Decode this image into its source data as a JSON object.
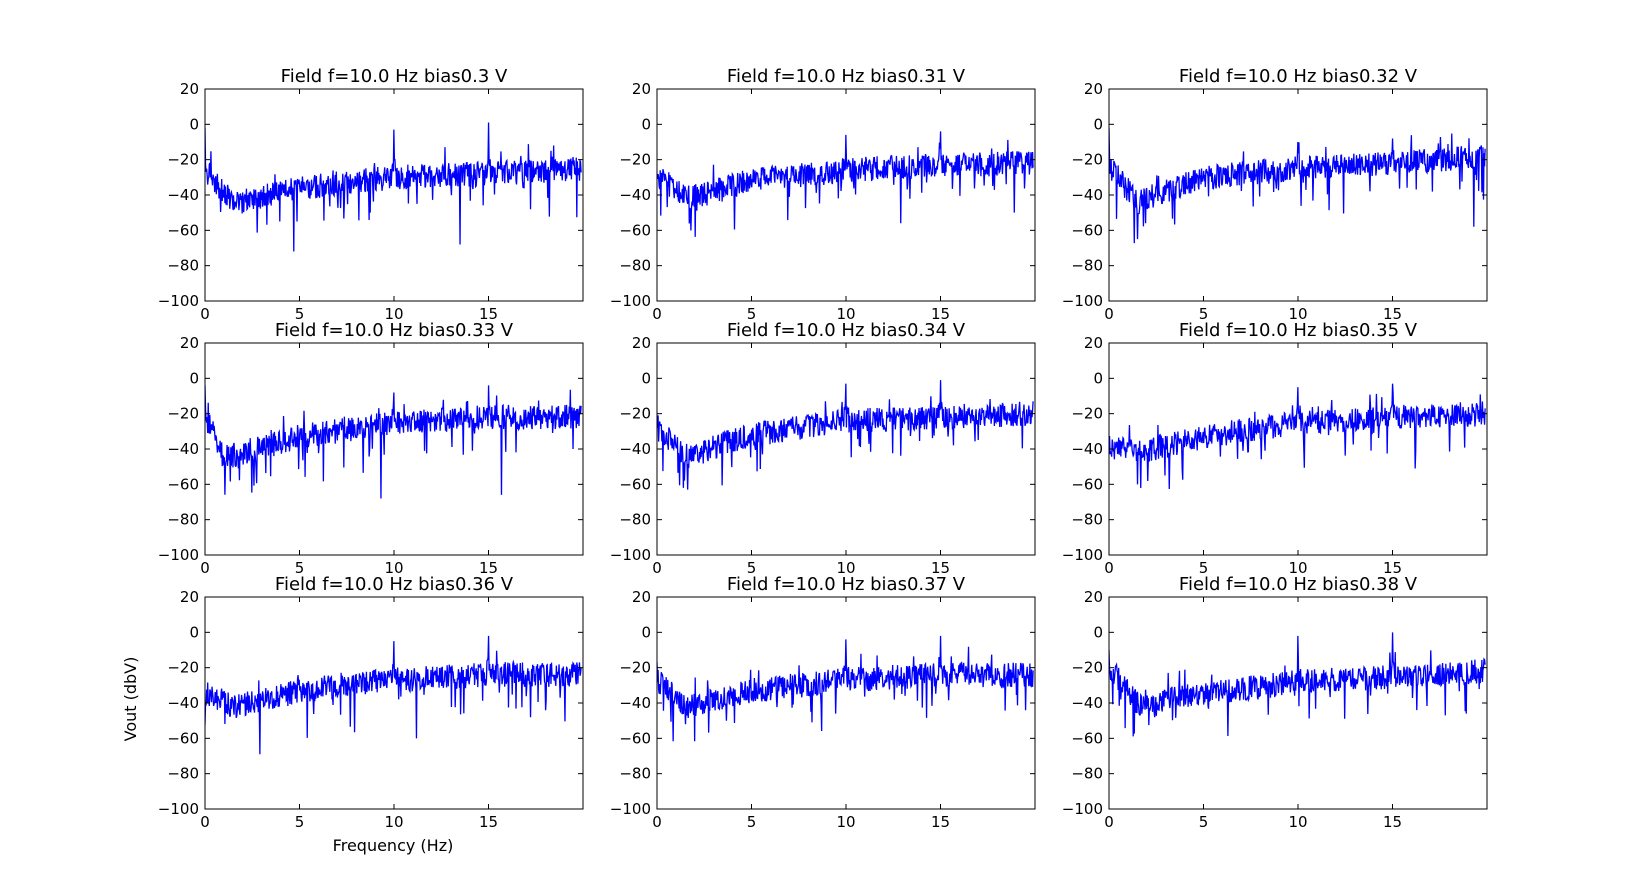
{
  "figure": {
    "ylabel": "Vout (dbV)",
    "xlabel": "Frequency (Hz)"
  },
  "chart_data": [
    {
      "type": "line",
      "title": "Field f=10.0 Hz bias0.3 V",
      "xlim": [
        0,
        20
      ],
      "ylim": [
        -100,
        20
      ],
      "xticks": [
        0,
        5,
        10,
        15
      ],
      "yticks": [
        20,
        0,
        -20,
        -40,
        -60,
        -80,
        -100
      ],
      "line_color": "#0000ff",
      "peaks": [
        {
          "x": 0.0,
          "y": -2
        },
        {
          "x": 4.7,
          "y": -72
        },
        {
          "x": 10.0,
          "y": -3
        },
        {
          "x": 13.5,
          "y": -68
        },
        {
          "x": 15.0,
          "y": 1
        }
      ],
      "noise_floor": [
        {
          "x": 0.2,
          "y": -28
        },
        {
          "x": 1.5,
          "y": -45
        },
        {
          "x": 5.0,
          "y": -36
        },
        {
          "x": 10.0,
          "y": -30
        },
        {
          "x": 15.0,
          "y": -28
        },
        {
          "x": 19.9,
          "y": -25
        }
      ]
    },
    {
      "type": "line",
      "title": "Field f=10.0 Hz bias0.31 V",
      "xlim": [
        0,
        20
      ],
      "ylim": [
        -100,
        20
      ],
      "xticks": [
        0,
        5,
        10,
        15
      ],
      "yticks": [
        20,
        0,
        -20,
        -40,
        -60,
        -80,
        -100
      ],
      "line_color": "#0000ff",
      "peaks": [
        {
          "x": 0.0,
          "y": -28
        },
        {
          "x": 10.0,
          "y": -6
        },
        {
          "x": 12.9,
          "y": -56
        },
        {
          "x": 15.0,
          "y": -4
        },
        {
          "x": 18.9,
          "y": -50
        }
      ],
      "noise_floor": [
        {
          "x": 0.2,
          "y": -30
        },
        {
          "x": 1.5,
          "y": -42
        },
        {
          "x": 5.0,
          "y": -32
        },
        {
          "x": 10.0,
          "y": -26
        },
        {
          "x": 15.0,
          "y": -23
        },
        {
          "x": 19.9,
          "y": -22
        }
      ]
    },
    {
      "type": "line",
      "title": "Field f=10.0 Hz bias0.32 V",
      "xlim": [
        0,
        20
      ],
      "ylim": [
        -100,
        20
      ],
      "xticks": [
        0,
        5,
        10,
        15
      ],
      "yticks": [
        20,
        0,
        -20,
        -40,
        -60,
        -80,
        -100
      ],
      "line_color": "#0000ff",
      "peaks": [
        {
          "x": 0.0,
          "y": -2
        },
        {
          "x": 1.5,
          "y": -65
        },
        {
          "x": 10.0,
          "y": -10
        },
        {
          "x": 15.0,
          "y": -8
        },
        {
          "x": 19.3,
          "y": -58
        }
      ],
      "noise_floor": [
        {
          "x": 0.2,
          "y": -26
        },
        {
          "x": 1.5,
          "y": -44
        },
        {
          "x": 5.0,
          "y": -30
        },
        {
          "x": 10.0,
          "y": -25
        },
        {
          "x": 15.0,
          "y": -22
        },
        {
          "x": 19.9,
          "y": -18
        }
      ]
    },
    {
      "type": "line",
      "title": "Field f=10.0 Hz bias0.33 V",
      "xlim": [
        0,
        20
      ],
      "ylim": [
        -100,
        20
      ],
      "xticks": [
        0,
        5,
        10,
        15
      ],
      "yticks": [
        20,
        0,
        -20,
        -40,
        -60,
        -80,
        -100
      ],
      "line_color": "#0000ff",
      "peaks": [
        {
          "x": 0.0,
          "y": -4
        },
        {
          "x": 9.3,
          "y": -68
        },
        {
          "x": 10.0,
          "y": -8
        },
        {
          "x": 15.0,
          "y": -4
        },
        {
          "x": 15.7,
          "y": -66
        }
      ],
      "noise_floor": [
        {
          "x": 0.2,
          "y": -25
        },
        {
          "x": 1.0,
          "y": -45
        },
        {
          "x": 5.0,
          "y": -33
        },
        {
          "x": 10.0,
          "y": -25
        },
        {
          "x": 15.0,
          "y": -22
        },
        {
          "x": 19.9,
          "y": -22
        }
      ]
    },
    {
      "type": "line",
      "title": "Field f=10.0 Hz bias0.34 V",
      "xlim": [
        0,
        20
      ],
      "ylim": [
        -100,
        20
      ],
      "xticks": [
        0,
        5,
        10,
        15
      ],
      "yticks": [
        20,
        0,
        -20,
        -40,
        -60,
        -80,
        -100
      ],
      "line_color": "#0000ff",
      "peaks": [
        {
          "x": 0.0,
          "y": -28
        },
        {
          "x": 1.4,
          "y": -62
        },
        {
          "x": 10.0,
          "y": -3
        },
        {
          "x": 15.0,
          "y": -1
        },
        {
          "x": 19.9,
          "y": -13
        }
      ],
      "noise_floor": [
        {
          "x": 0.2,
          "y": -30
        },
        {
          "x": 1.5,
          "y": -44
        },
        {
          "x": 5.0,
          "y": -32
        },
        {
          "x": 10.0,
          "y": -24
        },
        {
          "x": 15.0,
          "y": -22
        },
        {
          "x": 19.9,
          "y": -20
        }
      ]
    },
    {
      "type": "line",
      "title": "Field f=10.0 Hz bias0.35 V",
      "xlim": [
        0,
        20
      ],
      "ylim": [
        -100,
        20
      ],
      "xticks": [
        0,
        5,
        10,
        15
      ],
      "yticks": [
        20,
        0,
        -20,
        -40,
        -60,
        -80,
        -100
      ],
      "line_color": "#0000ff",
      "peaks": [
        {
          "x": 1.5,
          "y": -60
        },
        {
          "x": 10.0,
          "y": -5
        },
        {
          "x": 15.0,
          "y": -3
        },
        {
          "x": 16.2,
          "y": -51
        }
      ],
      "noise_floor": [
        {
          "x": 0.2,
          "y": -38
        },
        {
          "x": 1.5,
          "y": -42
        },
        {
          "x": 5.0,
          "y": -33
        },
        {
          "x": 10.0,
          "y": -25
        },
        {
          "x": 15.0,
          "y": -22
        },
        {
          "x": 19.9,
          "y": -20
        }
      ]
    },
    {
      "type": "line",
      "title": "Field f=10.0 Hz bias0.36 V",
      "xlim": [
        0,
        20
      ],
      "ylim": [
        -100,
        20
      ],
      "xticks": [
        0,
        5,
        10,
        15
      ],
      "yticks": [
        20,
        0,
        -20,
        -40,
        -60,
        -80,
        -100
      ],
      "line_color": "#0000ff",
      "peaks": [
        {
          "x": 2.9,
          "y": -69
        },
        {
          "x": 10.0,
          "y": -5
        },
        {
          "x": 11.2,
          "y": -60
        },
        {
          "x": 15.0,
          "y": -2
        }
      ],
      "noise_floor": [
        {
          "x": 0.2,
          "y": -35
        },
        {
          "x": 1.5,
          "y": -42
        },
        {
          "x": 5.0,
          "y": -33
        },
        {
          "x": 10.0,
          "y": -27
        },
        {
          "x": 15.0,
          "y": -24
        },
        {
          "x": 19.9,
          "y": -24
        }
      ]
    },
    {
      "type": "line",
      "title": "Field f=10.0 Hz bias0.37 V",
      "xlim": [
        0,
        20
      ],
      "ylim": [
        -100,
        20
      ],
      "xticks": [
        0,
        5,
        10,
        15
      ],
      "yticks": [
        20,
        0,
        -20,
        -40,
        -60,
        -80,
        -100
      ],
      "line_color": "#0000ff",
      "peaks": [
        {
          "x": 0.0,
          "y": -17
        },
        {
          "x": 1.5,
          "y": -52
        },
        {
          "x": 10.0,
          "y": -4
        },
        {
          "x": 15.0,
          "y": -2
        }
      ],
      "noise_floor": [
        {
          "x": 0.2,
          "y": -28
        },
        {
          "x": 1.5,
          "y": -42
        },
        {
          "x": 5.0,
          "y": -33
        },
        {
          "x": 10.0,
          "y": -27
        },
        {
          "x": 15.0,
          "y": -24
        },
        {
          "x": 19.9,
          "y": -24
        }
      ]
    },
    {
      "type": "line",
      "title": "Field f=10.0 Hz bias0.38 V",
      "xlim": [
        0,
        20
      ],
      "ylim": [
        -100,
        20
      ],
      "xticks": [
        0,
        5,
        10,
        15
      ],
      "yticks": [
        20,
        0,
        -20,
        -40,
        -60,
        -80,
        -100
      ],
      "line_color": "#0000ff",
      "peaks": [
        {
          "x": 0.0,
          "y": -10
        },
        {
          "x": 10.0,
          "y": -2
        },
        {
          "x": 15.0,
          "y": 0
        },
        {
          "x": 18.9,
          "y": -46
        }
      ],
      "noise_floor": [
        {
          "x": 0.2,
          "y": -22
        },
        {
          "x": 1.5,
          "y": -40
        },
        {
          "x": 5.0,
          "y": -35
        },
        {
          "x": 10.0,
          "y": -28
        },
        {
          "x": 15.0,
          "y": -25
        },
        {
          "x": 19.9,
          "y": -22
        }
      ]
    }
  ]
}
